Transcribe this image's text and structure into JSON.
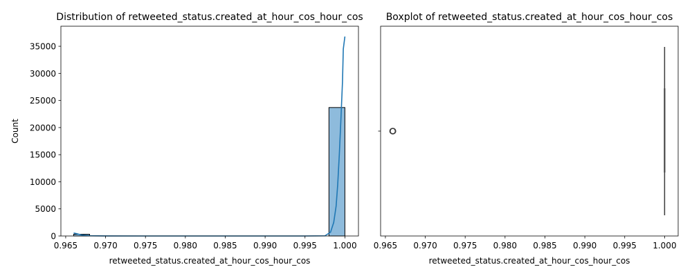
{
  "colors": {
    "bar_fill": "#8ebbdc",
    "bar_edge": "#000000",
    "kde_line": "#1f77b4",
    "box_fill": "#8ebbdc",
    "box_line": "#3a3a3a",
    "background": "#ffffff"
  },
  "chart_data": [
    {
      "type": "bar",
      "title": "Distribution of retweeted_status.created_at_hour_cos_hour_cos",
      "xlabel": "retweeted_status.created_at_hour_cos_hour_cos",
      "ylabel": "Count",
      "xlim": [
        0.9644,
        1.0017
      ],
      "ylim": [
        0,
        38700
      ],
      "xticks": [
        0.965,
        0.97,
        0.975,
        0.98,
        0.985,
        0.99,
        0.995,
        1.0
      ],
      "xtick_labels": [
        "0.965",
        "0.970",
        "0.975",
        "0.980",
        "0.985",
        "0.990",
        "0.995",
        "1.000"
      ],
      "yticks": [
        0,
        5000,
        10000,
        15000,
        20000,
        25000,
        30000,
        35000
      ],
      "ytick_labels": [
        "0",
        "5000",
        "10000",
        "15000",
        "20000",
        "25000",
        "30000",
        "35000"
      ],
      "bins": [
        {
          "x0": 0.966,
          "x1": 0.968,
          "count": 320
        },
        {
          "x0": 0.998,
          "x1": 1.0,
          "count": 23700
        }
      ],
      "kde": {
        "x": [
          0.966,
          0.9665,
          0.967,
          0.968,
          0.97,
          0.975,
          0.98,
          0.985,
          0.99,
          0.995,
          0.9975,
          0.9982,
          0.9986,
          0.9989,
          0.9991,
          0.9993,
          0.9995,
          0.9997,
          0.9998,
          1.0
        ],
        "y": [
          550,
          380,
          180,
          40,
          5,
          0,
          0,
          0,
          0,
          0,
          30,
          700,
          2500,
          5500,
          9500,
          15000,
          21500,
          28500,
          34500,
          36800
        ]
      },
      "grid": false,
      "legend": "none"
    },
    {
      "type": "boxplot",
      "title": "Boxplot of retweeted_status.created_at_hour_cos_hour_cos",
      "xlabel": "retweeted_status.created_at_hour_cos_hour_cos",
      "xlim": [
        0.9644,
        1.0017
      ],
      "xticks": [
        0.965,
        0.97,
        0.975,
        0.98,
        0.985,
        0.99,
        0.995,
        1.0
      ],
      "xtick_labels": [
        "0.965",
        "0.970",
        "0.975",
        "0.980",
        "0.985",
        "0.990",
        "0.995",
        "1.000"
      ],
      "box": {
        "q1": 1.0,
        "median": 1.0,
        "q3": 1.0,
        "whisker_low": 1.0,
        "whisker_high": 1.0
      },
      "outliers": [
        0.9659,
        0.9659,
        0.9659,
        0.9659
      ],
      "grid": false,
      "legend": "none"
    }
  ]
}
